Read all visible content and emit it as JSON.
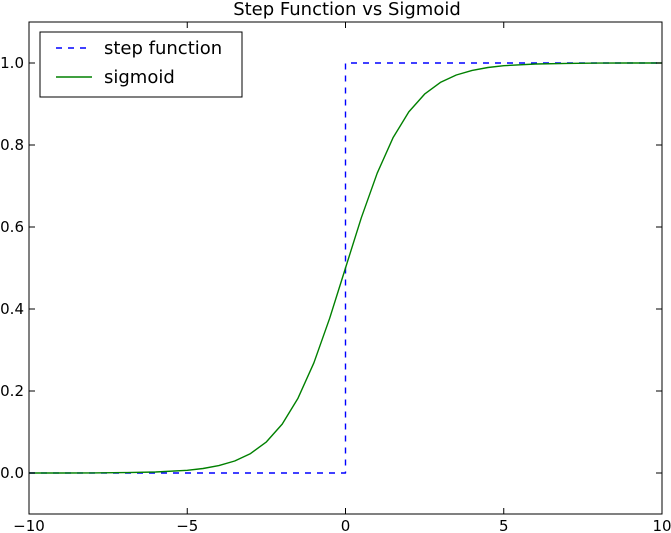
{
  "chart_data": {
    "type": "line",
    "title": "Step Function vs Sigmoid",
    "xlabel": "",
    "ylabel": "",
    "xlim": [
      -10,
      10
    ],
    "ylim": [
      -0.1,
      1.1
    ],
    "xticks": [
      -10,
      -5,
      0,
      5,
      10
    ],
    "xtick_labels": [
      "−10",
      "−5",
      "0",
      "5",
      "10"
    ],
    "yticks": [
      0.0,
      0.2,
      0.4,
      0.6,
      0.8,
      1.0
    ],
    "ytick_labels": [
      "0.0",
      "0.2",
      "0.4",
      "0.6",
      "0.8",
      "1.0"
    ],
    "grid": false,
    "legend_position": "top-left",
    "series": [
      {
        "name": "step function",
        "style": "dashed",
        "color": "#0000ff",
        "x": [
          -10,
          0,
          0,
          10
        ],
        "y": [
          0,
          0,
          1,
          1
        ]
      },
      {
        "name": "sigmoid",
        "style": "solid",
        "color": "#008000",
        "x": [
          -10,
          -9,
          -8,
          -7,
          -6,
          -5,
          -4.5,
          -4,
          -3.5,
          -3,
          -2.5,
          -2,
          -1.5,
          -1,
          -0.5,
          0,
          0.5,
          1,
          1.5,
          2,
          2.5,
          3,
          3.5,
          4,
          4.5,
          5,
          6,
          7,
          8,
          9,
          10
        ],
        "y": [
          0.0,
          0.0001,
          0.0003,
          0.0009,
          0.0025,
          0.0067,
          0.011,
          0.018,
          0.0293,
          0.0474,
          0.0759,
          0.1192,
          0.1824,
          0.2689,
          0.3775,
          0.5,
          0.6225,
          0.7311,
          0.8176,
          0.8808,
          0.9241,
          0.9526,
          0.9707,
          0.982,
          0.989,
          0.9933,
          0.9975,
          0.9991,
          0.9997,
          0.9999,
          1.0
        ]
      }
    ]
  }
}
